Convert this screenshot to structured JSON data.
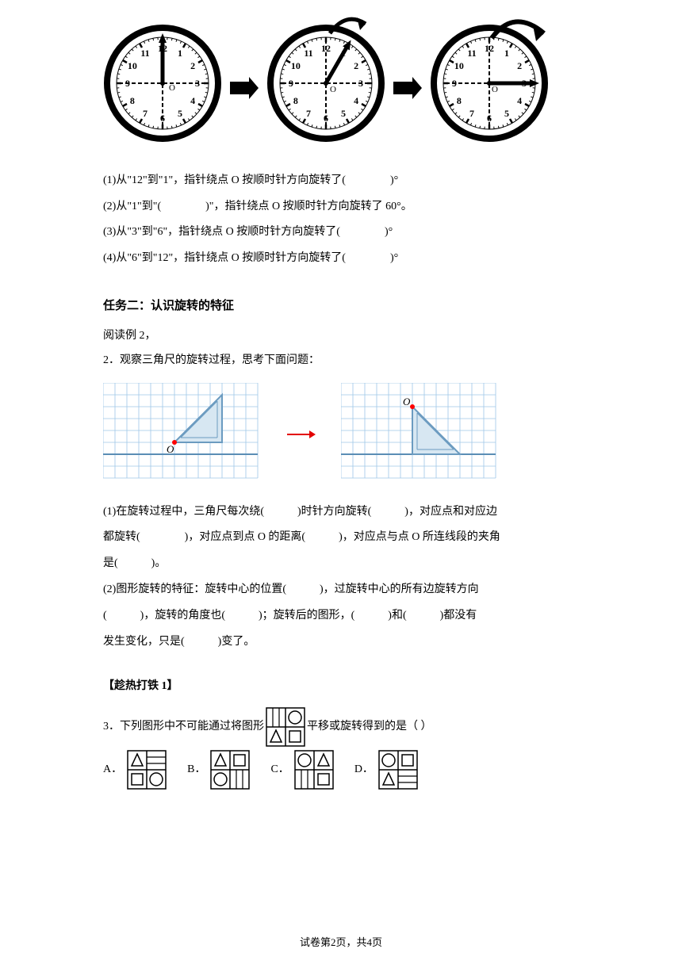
{
  "clocks": {
    "radius": 70,
    "colors": {
      "stroke": "#000000",
      "bg": "#ffffff"
    },
    "numbers": [
      "12",
      "1",
      "2",
      "3",
      "4",
      "5",
      "6",
      "7",
      "8",
      "9",
      "10",
      "11"
    ],
    "center_label": "O"
  },
  "q1": {
    "lines": [
      "(1)从\"12\"到\"1\"，指针绕点 O 按顺时针方向旋转了(　　　　)°",
      "(2)从\"1\"到\"(　　　　)\"，指针绕点 O 按顺时针方向旋转了 60°。",
      "(3)从\"3\"到\"6\"，指针绕点 O 按顺时针方向旋转了(　　　　)°",
      "(4)从\"6\"到\"12\"，指针绕点 O 按顺时针方向旋转了(　　　　)°"
    ]
  },
  "task2": {
    "title": "任务二：认识旋转的特征",
    "read": "阅读例 2，",
    "q": "2．观察三角尺的旋转过程，思考下面问题："
  },
  "grid": {
    "cols": 13,
    "rows": 8,
    "cell": 15,
    "colors": {
      "grid": "#9fc7e8",
      "bg": "#ffffff",
      "triangle_fill": "#d7e7f2",
      "triangle_stroke": "#6b9bc0",
      "point": "#ff0000",
      "bold_line": "#5a8db5",
      "label": "#000000"
    }
  },
  "q2_text": {
    "p1": "(1)在旋转过程中，三角尺每次绕(　　　)时针方向旋转(　　　)，对应点和对应边",
    "p2": "都旋转(　　　　)，对应点到点 O 的距离(　　　)，对应点与点 O 所连线段的夹角",
    "p3": "是(　　　)。",
    "p4": "(2)图形旋转的特征：旋转中心的位置(　　　)，过旋转中心的所有边旋转方向",
    "p5": "(　　　)，旋转的角度也(　　　)；旋转后的图形，(　　　)和(　　　)都没有",
    "p6": "发生变化，只是(　　　)变了。"
  },
  "hot": {
    "title": "【趁热打铁 1】"
  },
  "q3": {
    "prefix": "3．下列图形中不可能通过将图形",
    "suffix": "平移或旋转得到的是（  ）",
    "options": {
      "A": "A．",
      "B": "B．",
      "C": "C．",
      "D": "D．"
    }
  },
  "tiles": {
    "size": 48,
    "colors": {
      "stroke": "#000000",
      "bg": "#ffffff"
    }
  },
  "footer": "试卷第2页，共4页"
}
